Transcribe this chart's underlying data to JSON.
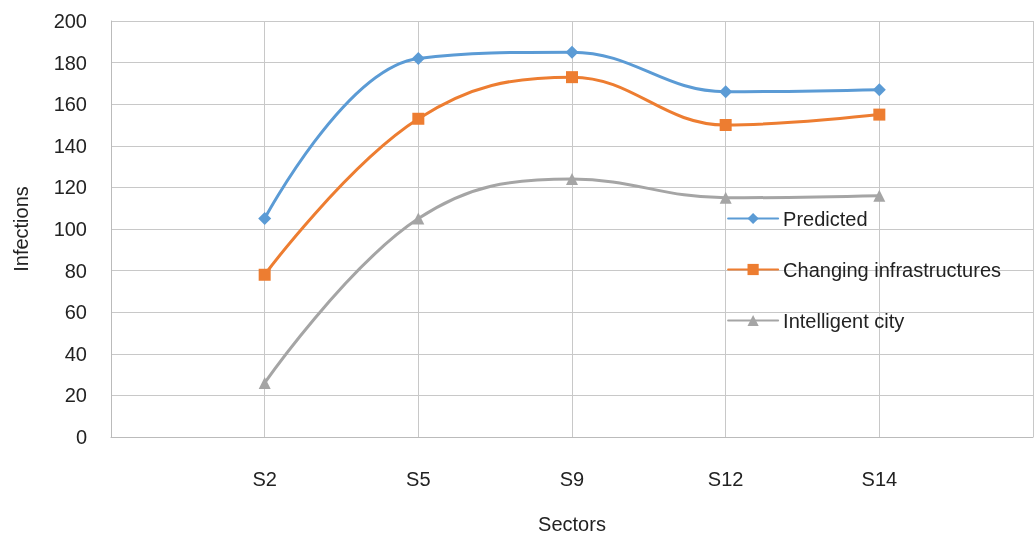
{
  "chart_data": {
    "type": "line",
    "xlabel": "Sectors",
    "ylabel": "Infections",
    "categories": [
      "S2",
      "S5",
      "S9",
      "S12",
      "S14"
    ],
    "series": [
      {
        "name": "Predicted",
        "color": "#5b9bd5",
        "marker": "diamond",
        "values": [
          105,
          182,
          185,
          166,
          167
        ]
      },
      {
        "name": "Changing infrastructures",
        "color": "#ed7d31",
        "marker": "square",
        "values": [
          78,
          153,
          173,
          150,
          155
        ]
      },
      {
        "name": "Intelligent city",
        "color": "#a5a5a5",
        "marker": "triangle",
        "values": [
          26,
          105,
          124,
          115,
          116
        ]
      }
    ],
    "ylim": [
      0,
      200
    ],
    "yticks": [
      0,
      20,
      40,
      60,
      80,
      100,
      120,
      140,
      160,
      180,
      200
    ],
    "grid": true,
    "legend": "right",
    "line_style": "solid"
  }
}
